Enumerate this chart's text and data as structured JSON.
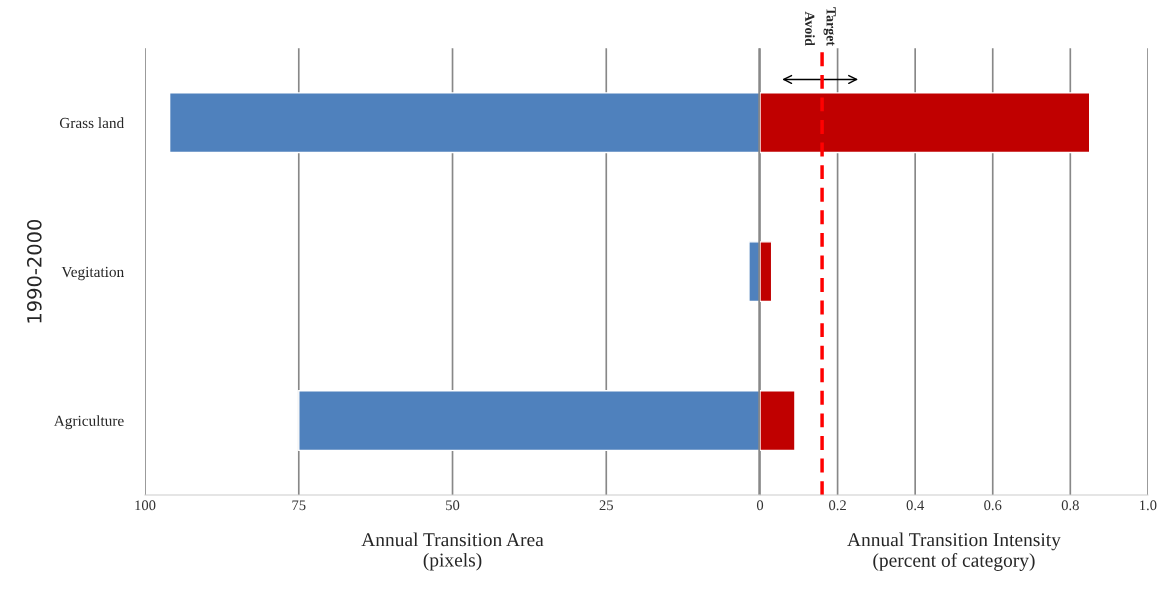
{
  "chart_data": [
    {
      "type": "bar",
      "orientation": "horizontal",
      "categories": [
        "Grass land",
        "Vegitation",
        "Agriculture"
      ],
      "ylabel": "1990-2000",
      "xlabel": "Annual Transition Area\n(pixels)",
      "series": [
        {
          "color": "#4f81bd",
          "values": [
            96,
            1.8,
            75
          ]
        }
      ],
      "xlim": [
        100,
        0
      ],
      "xticks": [
        100,
        75,
        50,
        25,
        0
      ],
      "grid": "x"
    },
    {
      "type": "bar",
      "orientation": "horizontal",
      "xlabel": "Annual Transition Intensity\n(percent of category)",
      "series": [
        {
          "color": "#c00000",
          "values": [
            0.85,
            0.03,
            0.09
          ]
        }
      ],
      "xlim": [
        0,
        1.0
      ],
      "xticks": [
        {
          "value": 0,
          "label": null
        },
        0.2,
        0.4,
        0.6,
        0.8,
        {
          "value": 1.0,
          "label": "1.0"
        }
      ],
      "grid": "x",
      "tick_labels": "x",
      "ref_lines": [
        {
          "axis": "x",
          "value": 0.16,
          "color": "#ff0000",
          "line_style": "dashed"
        }
      ],
      "annotations": [
        "Avoid",
        "Target"
      ]
    }
  ]
}
